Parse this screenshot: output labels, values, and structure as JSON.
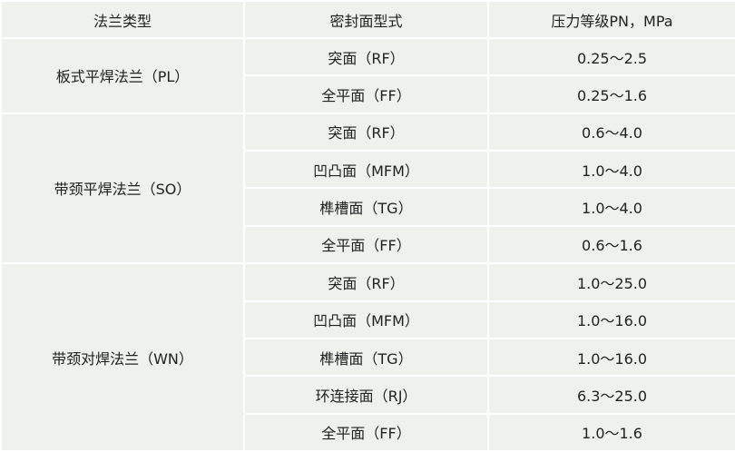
{
  "header": [
    "法兰类型",
    "密封面型式",
    "压力等级PN，MPa"
  ],
  "groups": [
    {
      "type": "板式平焊法兰（PL）",
      "rows": [
        {
          "face": "突面（RF）",
          "pressure": "0.25～2.5"
        },
        {
          "face": "全平面（FF）",
          "pressure": "0.25～1.6"
        }
      ]
    },
    {
      "type": "带颈平焊法兰（SO）",
      "rows": [
        {
          "face": "突面（RF）",
          "pressure": "0.6～4.0"
        },
        {
          "face": "凹凸面（MFM）",
          "pressure": "1.0～4.0"
        },
        {
          "face": "榫槽面（TG）",
          "pressure": "1.0～4.0"
        },
        {
          "face": "全平面（FF）",
          "pressure": "0.6～1.6"
        }
      ]
    },
    {
      "type": "带颈对焊法兰（WN）",
      "rows": [
        {
          "face": "突面（RF）",
          "pressure": "1.0～25.0"
        },
        {
          "face": "凹凸面（MFM）",
          "pressure": "1.0～16.0"
        },
        {
          "face": "榫槽面（TG）",
          "pressure": "1.0～16.0"
        },
        {
          "face": "环连接面（RJ）",
          "pressure": "6.3～25.0"
        },
        {
          "face": "全平面（FF）",
          "pressure": "1.0～1.6"
        }
      ]
    }
  ],
  "colors": {
    "cell_background": "#eef1ec",
    "grid_lines": "#ffffff",
    "text": "#222222"
  }
}
